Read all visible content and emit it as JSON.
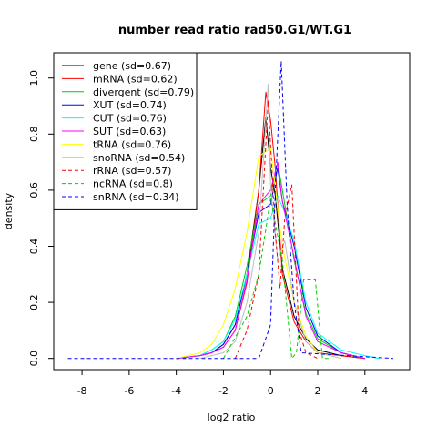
{
  "chart_data": {
    "type": "line",
    "title": "number read ratio rad50.G1/WT.G1",
    "xlabel": "log2 ratio",
    "ylabel": "density",
    "xlim": [
      -9.2,
      5.9
    ],
    "ylim": [
      -0.04,
      1.09
    ],
    "xticks": [
      -8,
      -6,
      -4,
      -2,
      0,
      2,
      4
    ],
    "yticks": [
      0.0,
      0.2,
      0.4,
      0.6,
      0.8,
      1.0
    ],
    "xtick_labels": [
      "-8",
      "-6",
      "-4",
      "-2",
      "0",
      "2",
      "4"
    ],
    "ytick_labels": [
      "0.0",
      "0.2",
      "0.4",
      "0.6",
      "0.8",
      "1.0"
    ],
    "legend_position": "top-left",
    "series": [
      {
        "name": "gene (sd=0.67)",
        "color": "#000000",
        "dash": false,
        "x": [
          -4,
          -3,
          -2.5,
          -2,
          -1.5,
          -1,
          -0.5,
          -0.2,
          0,
          0.2,
          0.5,
          1,
          1.5,
          2,
          3,
          4
        ],
        "y": [
          0,
          0.01,
          0.02,
          0.05,
          0.12,
          0.3,
          0.6,
          0.86,
          0.68,
          0.58,
          0.32,
          0.15,
          0.07,
          0.03,
          0.01,
          0
        ]
      },
      {
        "name": "mRNA (sd=0.62)",
        "color": "#ff0000",
        "dash": false,
        "x": [
          -4,
          -3,
          -2.5,
          -2,
          -1.5,
          -1,
          -0.5,
          -0.2,
          0,
          0.2,
          0.5,
          1,
          1.5,
          2,
          3,
          4
        ],
        "y": [
          0,
          0.01,
          0.02,
          0.04,
          0.1,
          0.27,
          0.6,
          0.95,
          0.85,
          0.68,
          0.3,
          0.13,
          0.06,
          0.02,
          0.01,
          0
        ]
      },
      {
        "name": "divergent (sd=0.79)",
        "color": "#00cd00",
        "dash": false,
        "x": [
          -4,
          -3,
          -2.5,
          -2,
          -1.5,
          -1,
          -0.5,
          0,
          0.3,
          0.5,
          1,
          1.5,
          2,
          3,
          4
        ],
        "y": [
          0,
          0.01,
          0.03,
          0.06,
          0.15,
          0.33,
          0.55,
          0.58,
          0.7,
          0.6,
          0.35,
          0.16,
          0.07,
          0.02,
          0
        ]
      },
      {
        "name": "XUT (sd=0.74)",
        "color": "#0000ff",
        "dash": false,
        "x": [
          -4,
          -3,
          -2.5,
          -2,
          -1.5,
          -1,
          -0.5,
          0,
          0.3,
          0.5,
          1,
          1.5,
          2,
          3,
          4
        ],
        "y": [
          0,
          0.01,
          0.02,
          0.05,
          0.12,
          0.3,
          0.52,
          0.55,
          0.68,
          0.56,
          0.4,
          0.18,
          0.08,
          0.02,
          0
        ]
      },
      {
        "name": "CUT (sd=0.76)",
        "color": "#00ffff",
        "dash": false,
        "x": [
          -4,
          -3,
          -2.5,
          -2,
          -1.5,
          -1,
          -0.5,
          0,
          0.3,
          0.6,
          1,
          1.5,
          2,
          3,
          4,
          4.6
        ],
        "y": [
          0,
          0.01,
          0.03,
          0.06,
          0.14,
          0.3,
          0.48,
          0.5,
          0.58,
          0.52,
          0.42,
          0.2,
          0.09,
          0.03,
          0.01,
          0
        ]
      },
      {
        "name": "SUT (sd=0.63)",
        "color": "#ff00ff",
        "dash": false,
        "x": [
          -4,
          -3,
          -2.5,
          -2,
          -1.5,
          -1,
          -0.5,
          0,
          0.3,
          0.5,
          1,
          1.5,
          2,
          3,
          4
        ],
        "y": [
          0,
          0.01,
          0.02,
          0.04,
          0.1,
          0.28,
          0.55,
          0.6,
          0.7,
          0.56,
          0.36,
          0.15,
          0.06,
          0.02,
          0
        ]
      },
      {
        "name": "tRNA (sd=0.76)",
        "color": "#ffff00",
        "dash": false,
        "x": [
          -4,
          -3,
          -2.5,
          -2,
          -1.5,
          -1,
          -0.5,
          0,
          0.5,
          1,
          1.5,
          2,
          3
        ],
        "y": [
          0,
          0.02,
          0.05,
          0.12,
          0.25,
          0.45,
          0.72,
          0.75,
          0.4,
          0.2,
          0.08,
          0.02,
          0
        ]
      },
      {
        "name": "snoRNA (sd=0.54)",
        "color": "#bebebe",
        "dash": false,
        "x": [
          -3,
          -2,
          -1.5,
          -1,
          -0.5,
          -0.1,
          0,
          0.3,
          0.6,
          1,
          1.5,
          2,
          3
        ],
        "y": [
          0,
          0.02,
          0.06,
          0.2,
          0.45,
          0.98,
          0.62,
          0.35,
          0.42,
          0.2,
          0.06,
          0.02,
          0
        ]
      },
      {
        "name": "rRNA (sd=0.57)",
        "color": "#ff0000",
        "dash": true,
        "x": [
          -1.5,
          -1,
          -0.5,
          -0.1,
          0.2,
          0.4,
          0.6,
          0.9,
          1.2,
          1.5,
          2
        ],
        "y": [
          0,
          0.1,
          0.3,
          0.92,
          0.45,
          0.25,
          0.5,
          0.62,
          0.1,
          0.02,
          0
        ]
      },
      {
        "name": "ncRNA (sd=0.8)",
        "color": "#00cd00",
        "dash": true,
        "x": [
          -2,
          -1,
          -0.5,
          0,
          0.5,
          0.9,
          1.1,
          1.4,
          1.9,
          2.2,
          2.5
        ],
        "y": [
          0,
          0.15,
          0.3,
          0.57,
          0.35,
          0.0,
          0.02,
          0.28,
          0.28,
          0.0,
          0
        ]
      },
      {
        "name": "snRNA (sd=0.34)",
        "color": "#0000ff",
        "dash": true,
        "x": [
          -8.6,
          -0.8,
          -0.5,
          0,
          0.2,
          0.45,
          0.7,
          1,
          1.3,
          5.2
        ],
        "y": [
          0,
          0,
          0.0,
          0.12,
          0.6,
          1.06,
          0.55,
          0.2,
          0.02,
          0
        ]
      }
    ]
  }
}
